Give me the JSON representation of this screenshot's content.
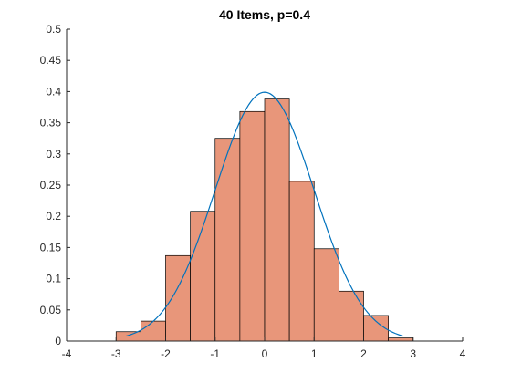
{
  "chart_data": {
    "type": "bar",
    "title": "40 Items, p=0.4",
    "xlabel": "",
    "ylabel": "",
    "xlim": [
      -4,
      4
    ],
    "ylim": [
      0,
      0.5
    ],
    "xticks": [
      -4,
      -3,
      -2,
      -1,
      0,
      1,
      2,
      3,
      4
    ],
    "yticks": [
      0,
      0.05,
      0.1,
      0.15,
      0.2,
      0.25,
      0.3,
      0.35,
      0.4,
      0.45,
      0.5
    ],
    "bin_width": 0.5,
    "bins": [
      {
        "x0": -3.0,
        "x1": -2.5,
        "value": 0.015
      },
      {
        "x0": -2.5,
        "x1": -2.0,
        "value": 0.032
      },
      {
        "x0": -2.0,
        "x1": -1.5,
        "value": 0.137
      },
      {
        "x0": -1.5,
        "x1": -1.0,
        "value": 0.208
      },
      {
        "x0": -1.0,
        "x1": -0.5,
        "value": 0.325
      },
      {
        "x0": -0.5,
        "x1": 0.0,
        "value": 0.368
      },
      {
        "x0": 0.0,
        "x1": 0.5,
        "value": 0.388
      },
      {
        "x0": 0.5,
        "x1": 1.0,
        "value": 0.256
      },
      {
        "x0": 1.0,
        "x1": 1.5,
        "value": 0.148
      },
      {
        "x0": 1.5,
        "x1": 2.0,
        "value": 0.08
      },
      {
        "x0": 2.0,
        "x1": 2.5,
        "value": 0.041
      },
      {
        "x0": 2.5,
        "x1": 3.0,
        "value": 0.005
      }
    ],
    "curve": {
      "type": "normal-pdf",
      "mean": 0,
      "sd": 1,
      "x_range": [
        -2.8,
        2.8
      ]
    },
    "colors": {
      "bar_fill": "#E8967A",
      "bar_edge": "#000000",
      "curve": "#0072BD",
      "axis": "#262626"
    },
    "grid": false,
    "legend": "none"
  }
}
